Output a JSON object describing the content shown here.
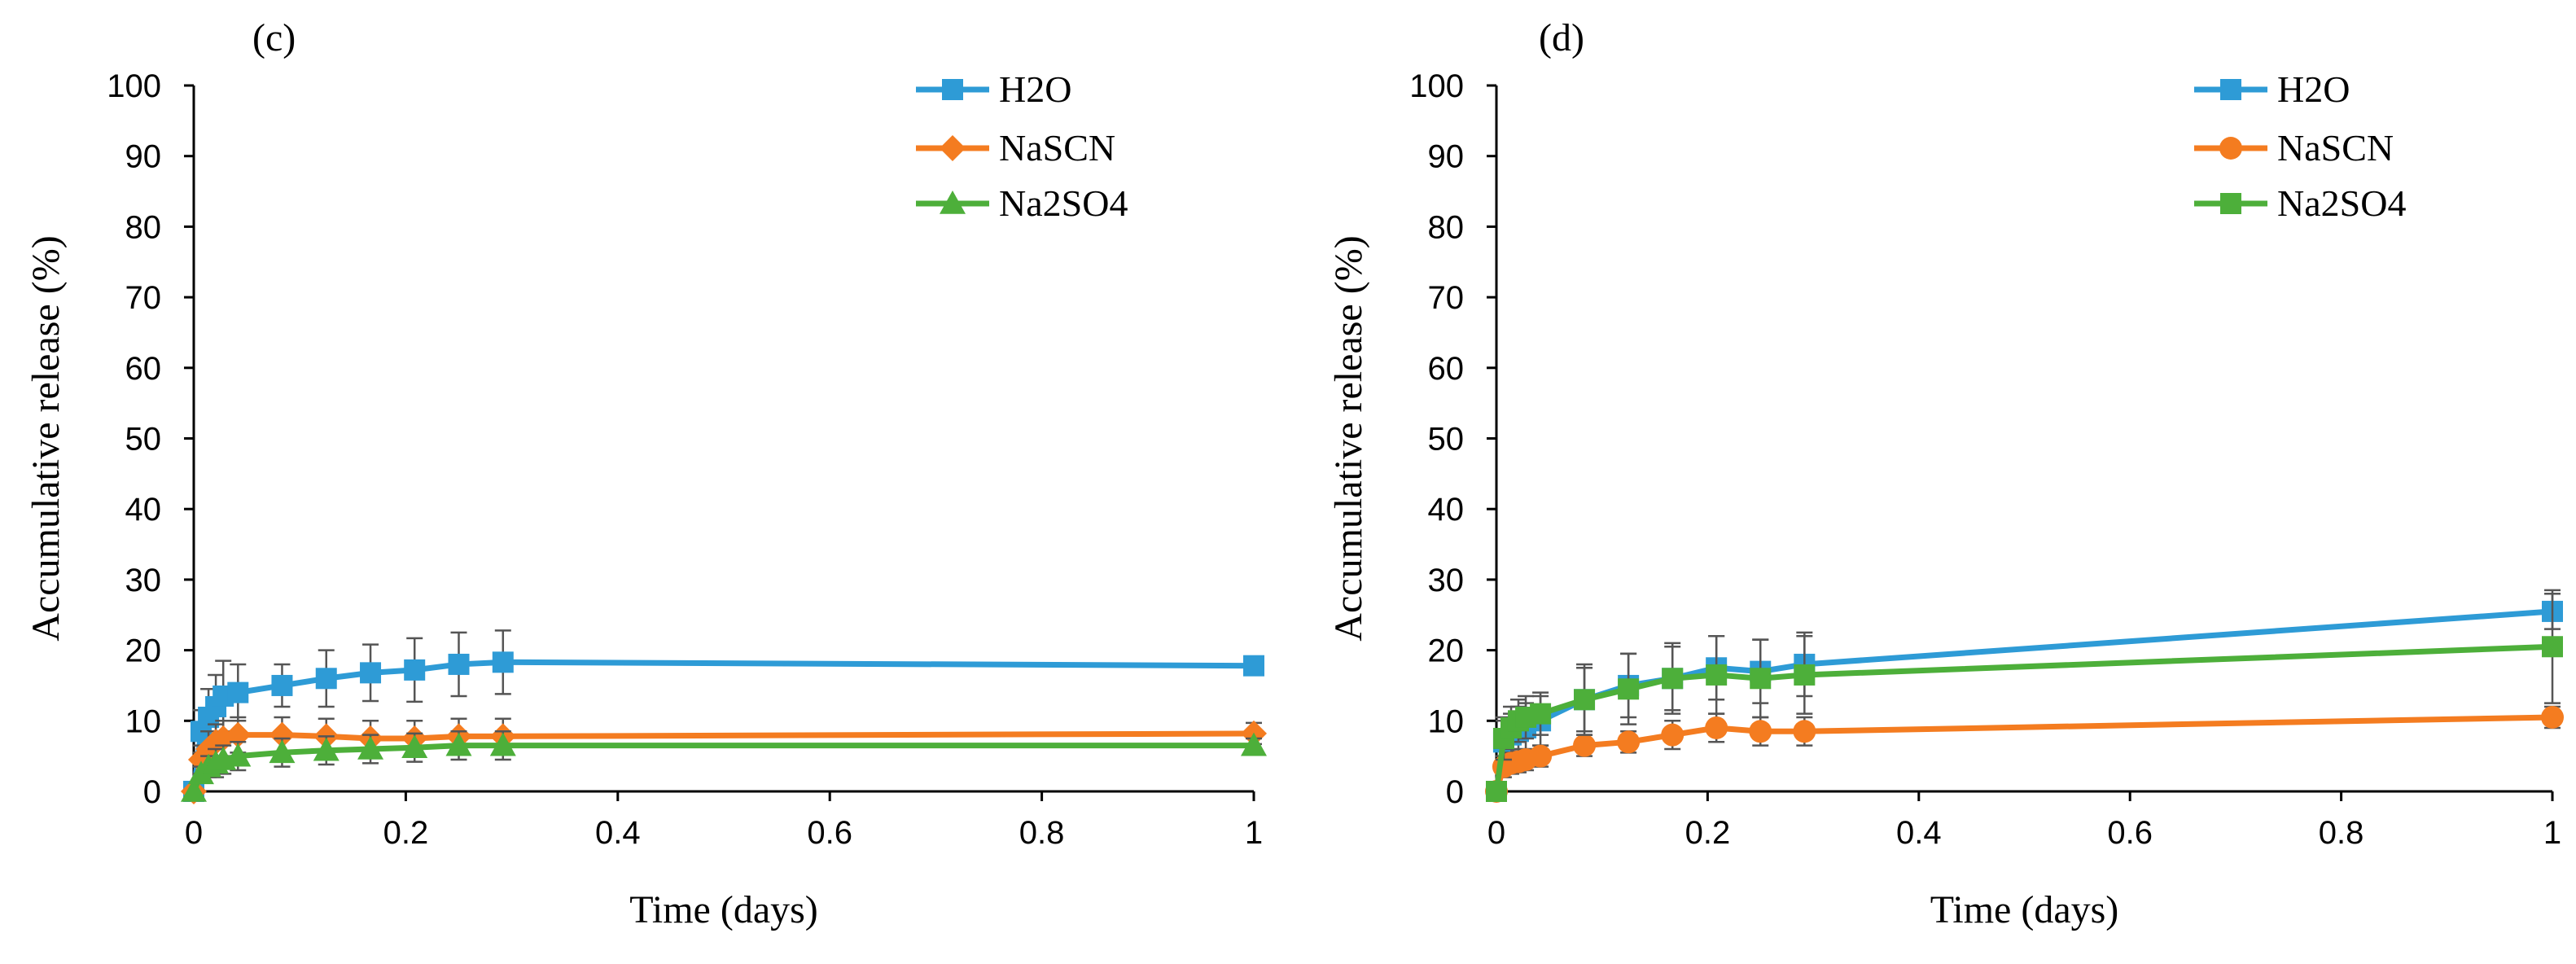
{
  "chart_data": [
    {
      "type": "line",
      "panel": "(c)",
      "xlabel": "Time (days)",
      "ylabel": "Accumulative release (%)",
      "xlim": [
        0,
        1
      ],
      "ylim": [
        0,
        100
      ],
      "xticks": [
        "0",
        "0.2",
        "0.4",
        "0.6",
        "0.8",
        "1"
      ],
      "yticks": [
        "0",
        "10",
        "20",
        "30",
        "40",
        "50",
        "60",
        "70",
        "80",
        "90",
        "100"
      ],
      "legend_position": "top-right",
      "series": [
        {
          "name": "H2O",
          "color": "#2E9BD6",
          "marker": "square",
          "x": [
            0,
            0.0069,
            0.0139,
            0.0208,
            0.0278,
            0.0417,
            0.0833,
            0.125,
            0.1667,
            0.2083,
            0.25,
            0.2917,
            1
          ],
          "y": [
            0,
            8.5,
            10.5,
            12,
            13.5,
            14,
            15,
            16,
            16.8,
            17.2,
            18,
            18.3,
            17.8
          ],
          "err": [
            0,
            3,
            4,
            4.5,
            5,
            4,
            3,
            4,
            4,
            4.5,
            4.5,
            4.5,
            1
          ]
        },
        {
          "name": "NaSCN",
          "color": "#F47C20",
          "marker": "diamond",
          "x": [
            0,
            0.0069,
            0.0139,
            0.0208,
            0.0278,
            0.0417,
            0.0833,
            0.125,
            0.1667,
            0.2083,
            0.25,
            0.2917,
            1
          ],
          "y": [
            0,
            4.5,
            6,
            7,
            7.5,
            8,
            8,
            7.8,
            7.5,
            7.5,
            7.8,
            7.8,
            8.2
          ],
          "err": [
            0,
            2,
            2.5,
            2.5,
            2.5,
            2.5,
            2.5,
            2.5,
            2.5,
            2.5,
            2.5,
            2.5,
            1.5
          ]
        },
        {
          "name": "Na2SO4",
          "color": "#4DAF3A",
          "marker": "triangle",
          "x": [
            0,
            0.0069,
            0.0139,
            0.0208,
            0.0278,
            0.0417,
            0.0833,
            0.125,
            0.1667,
            0.2083,
            0.25,
            0.2917,
            1
          ],
          "y": [
            0,
            2.5,
            3.5,
            4,
            4.5,
            5,
            5.5,
            5.8,
            6,
            6.2,
            6.5,
            6.5,
            6.5
          ],
          "err": [
            0,
            1,
            1.5,
            2,
            2,
            2,
            2,
            2,
            2,
            2,
            2,
            2,
            1
          ]
        }
      ]
    },
    {
      "type": "line",
      "panel": "(d)",
      "xlabel": "Time (days)",
      "ylabel": "Accumulative release (%)",
      "xlim": [
        0,
        1
      ],
      "ylim": [
        0,
        100
      ],
      "xticks": [
        "0",
        "0.2",
        "0.4",
        "0.6",
        "0.8",
        "1"
      ],
      "yticks": [
        "0",
        "10",
        "20",
        "30",
        "40",
        "50",
        "60",
        "70",
        "80",
        "90",
        "100"
      ],
      "legend_position": "top-right",
      "series": [
        {
          "name": "H2O",
          "color": "#2E9BD6",
          "marker": "square",
          "x": [
            0,
            0.0069,
            0.0139,
            0.0208,
            0.0278,
            0.0417,
            0.0833,
            0.125,
            0.1667,
            0.2083,
            0.25,
            0.2917,
            1
          ],
          "y": [
            0,
            7,
            8,
            8.5,
            9,
            10,
            13,
            15,
            16,
            17.5,
            17,
            18,
            25.5
          ],
          "err": [
            0,
            3,
            3,
            3.5,
            3.5,
            3.5,
            4.5,
            4.5,
            4.5,
            4.5,
            4.5,
            4.5,
            2.5
          ]
        },
        {
          "name": "NaSCN",
          "color": "#F47C20",
          "marker": "circle",
          "x": [
            0,
            0.0069,
            0.0139,
            0.0208,
            0.0278,
            0.0417,
            0.0833,
            0.125,
            0.1667,
            0.2083,
            0.25,
            0.2917,
            1
          ],
          "y": [
            0,
            3.5,
            4,
            4.2,
            4.5,
            5,
            6.5,
            7,
            8,
            9,
            8.5,
            8.5,
            10.5
          ],
          "err": [
            0,
            1.5,
            1.5,
            1.5,
            1.5,
            1.5,
            1.5,
            1.5,
            2,
            2,
            2,
            2,
            1.5
          ]
        },
        {
          "name": "Na2SO4",
          "color": "#4DAF3A",
          "marker": "square",
          "x": [
            0,
            0.0069,
            0.0139,
            0.0208,
            0.0278,
            0.0417,
            0.0833,
            0.125,
            0.1667,
            0.2083,
            0.25,
            0.2917,
            1
          ],
          "y": [
            0,
            7.5,
            9,
            10,
            10.5,
            11,
            13,
            14.5,
            16,
            16.5,
            16,
            16.5,
            20.5
          ],
          "err": [
            0,
            3,
            3,
            3,
            3,
            3,
            5,
            5,
            5,
            5.5,
            5.5,
            5.5,
            8
          ]
        }
      ]
    }
  ]
}
